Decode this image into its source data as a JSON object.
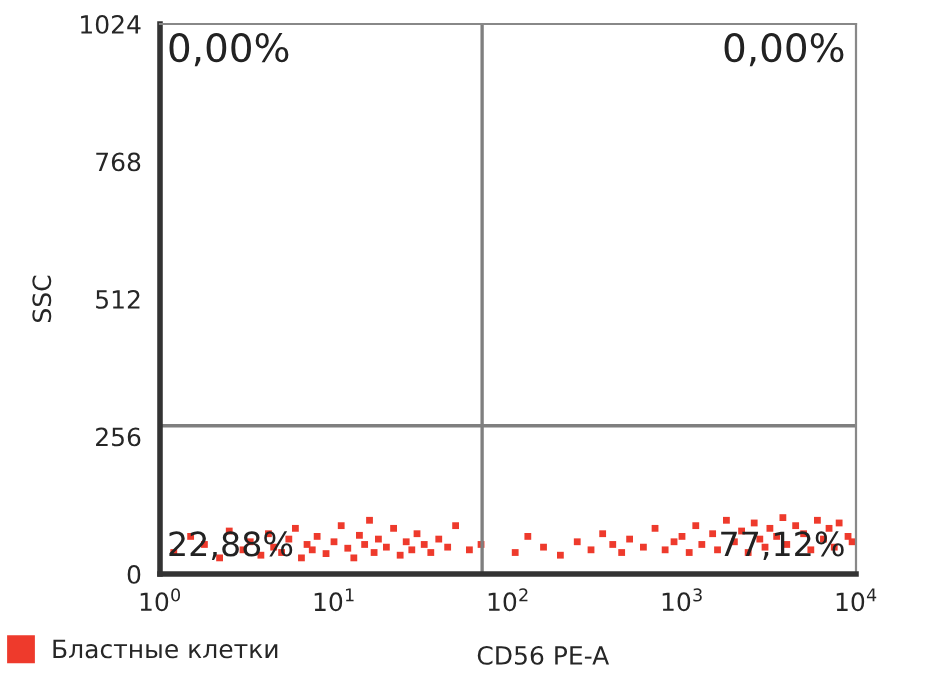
{
  "chart_data": {
    "type": "scatter",
    "xlabel": "CD56 PE-A",
    "ylabel": "SSC",
    "log": "x",
    "xlim": [
      1,
      10000
    ],
    "ylim": [
      0,
      1024
    ],
    "xticks": [
      {
        "value": 1,
        "label": "10$^{0}$"
      },
      {
        "value": 10,
        "label": "10$^{1}$"
      },
      {
        "value": 100,
        "label": "10$^{2}$"
      },
      {
        "value": 1000,
        "label": "10$^{3}$"
      },
      {
        "value": 10000,
        "label": "10$^{4}$"
      }
    ],
    "yticks": [
      0,
      256,
      512,
      768,
      1024
    ],
    "grid": false,
    "legend": "bottom left",
    "marker": "square",
    "ref_lines": [
      {
        "axis": "x",
        "value": 71,
        "color": "#7f7f7f"
      },
      {
        "axis": "y",
        "value": 276,
        "color": "#7f7f7f"
      }
    ],
    "annotations": [
      "0,00%",
      "0,00%",
      "22,88%",
      "77,12%"
    ],
    "series": [
      {
        "name": "Бластные клетки",
        "color": "#ee3a2c",
        "x": [
          1.2,
          1.5,
          1.8,
          2.2,
          2.5,
          3,
          3.3,
          3.8,
          4.2,
          4.5,
          5,
          5.5,
          6,
          6.5,
          7,
          7.5,
          8,
          9,
          10,
          11,
          12,
          13,
          14,
          15,
          16,
          17,
          18,
          20,
          22,
          24,
          26,
          28,
          30,
          33,
          36,
          40,
          45,
          50,
          60,
          70,
          110,
          130,
          160,
          200,
          250,
          300,
          350,
          400,
          450,
          500,
          600,
          700,
          800,
          900,
          1000,
          1100,
          1200,
          1300,
          1500,
          1600,
          1800,
          2000,
          2200,
          2400,
          2600,
          2800,
          3000,
          3200,
          3500,
          3800,
          4000,
          4500,
          5000,
          5500,
          6000,
          6500,
          7000,
          7500,
          8000,
          9000,
          9500
        ],
        "values": [
          40,
          70,
          55,
          30,
          80,
          45,
          60,
          35,
          75,
          50,
          40,
          65,
          85,
          30,
          55,
          45,
          70,
          38,
          60,
          90,
          48,
          30,
          72,
          55,
          100,
          40,
          65,
          50,
          85,
          35,
          60,
          45,
          75,
          55,
          40,
          65,
          50,
          90,
          45,
          55,
          40,
          70,
          50,
          35,
          60,
          45,
          75,
          55,
          40,
          65,
          50,
          85,
          45,
          60,
          70,
          40,
          90,
          55,
          75,
          45,
          100,
          60,
          80,
          40,
          95,
          65,
          50,
          85,
          70,
          105,
          55,
          90,
          75,
          45,
          100,
          65,
          85,
          50,
          95,
          70,
          60
        ]
      }
    ]
  }
}
